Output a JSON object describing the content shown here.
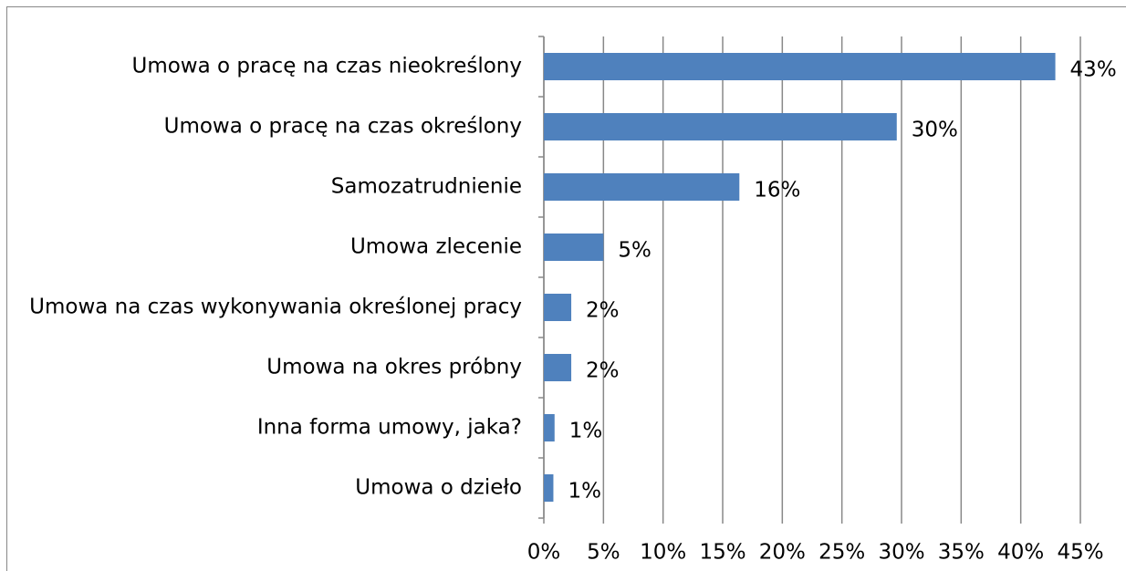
{
  "chart_data": {
    "type": "bar",
    "orientation": "horizontal",
    "categories": [
      "Umowa o pracę na czas nieokreślony",
      "Umowa o pracę na czas określony",
      "Samozatrudnienie",
      "Umowa zlecenie",
      "Umowa na czas wykonywania określonej pracy",
      "Umowa na okres próbny",
      "Inna forma umowy, jaka?",
      "Umowa o dzieło"
    ],
    "values": [
      42.9,
      29.6,
      16.4,
      5.0,
      2.3,
      2.3,
      0.9,
      0.8
    ],
    "value_labels": [
      "43%",
      "30%",
      "16%",
      "5%",
      "2%",
      "2%",
      "1%",
      "1%"
    ],
    "color": "#4f81bd",
    "xlim": [
      0,
      45
    ],
    "xticks": [
      {
        "value": 0,
        "label": "0%"
      },
      {
        "value": 5,
        "label": "5%"
      },
      {
        "value": 10,
        "label": "10%"
      },
      {
        "value": 15,
        "label": "15%"
      },
      {
        "value": 20,
        "label": "20%"
      },
      {
        "value": 25,
        "label": "25%"
      },
      {
        "value": 30,
        "label": "30%"
      },
      {
        "value": 35,
        "label": "35%"
      },
      {
        "value": 40,
        "label": "40%"
      },
      {
        "value": 45,
        "label": "45%"
      }
    ],
    "grid": true
  }
}
